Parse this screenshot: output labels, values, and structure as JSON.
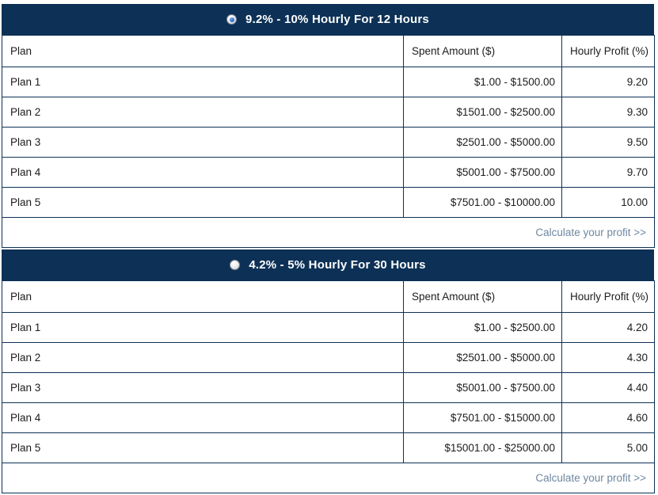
{
  "colors": {
    "navy": "#0d3156",
    "link_text": "#6f87a0",
    "body_text": "#1c1c1c",
    "header_text": "#ffffff"
  },
  "sections": [
    {
      "title": "9.2% - 10% Hourly For 12 Hours",
      "selected": true,
      "columns": [
        "Plan",
        "Spent Amount ($)",
        "Hourly Profit (%)"
      ],
      "rows": [
        {
          "plan": "Plan 1",
          "amount": "$1.00 - $1500.00",
          "profit": "9.20"
        },
        {
          "plan": "Plan 2",
          "amount": "$1501.00 - $2500.00",
          "profit": "9.30"
        },
        {
          "plan": "Plan 3",
          "amount": "$2501.00 - $5000.00",
          "profit": "9.50"
        },
        {
          "plan": "Plan 4",
          "amount": "$5001.00 - $7500.00",
          "profit": "9.70"
        },
        {
          "plan": "Plan 5",
          "amount": "$7501.00 - $10000.00",
          "profit": "10.00"
        }
      ],
      "footer_link": "Calculate your profit >>"
    },
    {
      "title": "4.2% - 5% Hourly For 30 Hours",
      "selected": false,
      "columns": [
        "Plan",
        "Spent Amount ($)",
        "Hourly Profit (%)"
      ],
      "rows": [
        {
          "plan": "Plan 1",
          "amount": "$1.00 - $2500.00",
          "profit": "4.20"
        },
        {
          "plan": "Plan 2",
          "amount": "$2501.00 - $5000.00",
          "profit": "4.30"
        },
        {
          "plan": "Plan 3",
          "amount": "$5001.00 - $7500.00",
          "profit": "4.40"
        },
        {
          "plan": "Plan 4",
          "amount": "$7501.00 - $15000.00",
          "profit": "4.60"
        },
        {
          "plan": "Plan 5",
          "amount": "$15001.00 - $25000.00",
          "profit": "5.00"
        }
      ],
      "footer_link": "Calculate your profit >>"
    }
  ]
}
